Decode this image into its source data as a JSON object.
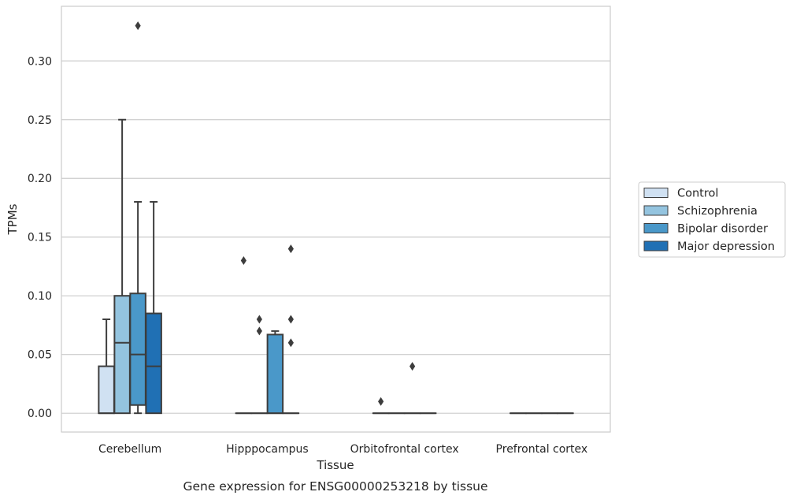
{
  "chart_data": {
    "type": "box",
    "title": "Gene expression for ENSG00000253218 by tissue",
    "xlabel": "Tissue",
    "ylabel": "TPMs",
    "ylim": [
      -0.016,
      0.3465
    ],
    "yticks": [
      0.0,
      0.05,
      0.1,
      0.15,
      0.2,
      0.25,
      0.3
    ],
    "ytick_labels": [
      "0.00",
      "0.05",
      "0.10",
      "0.15",
      "0.20",
      "0.25",
      "0.30"
    ],
    "grid": "horizontal",
    "legend_placement": "right",
    "categories": [
      "Cerebellum",
      "Hipppocampus",
      "Orbitofrontal cortex",
      "Prefrontal cortex"
    ],
    "series": [
      {
        "name": "Control",
        "color": "#d0e1f2",
        "boxes": [
          {
            "q1": 0.0,
            "median": 0.0,
            "q3": 0.04,
            "whislo": 0.0,
            "whishi": 0.08,
            "fliers": []
          },
          {
            "q1": 0.0,
            "median": 0.0,
            "q3": 0.0,
            "whislo": 0.0,
            "whishi": 0.0,
            "fliers": [
              0.13
            ]
          },
          {
            "q1": 0.0,
            "median": 0.0,
            "q3": 0.0,
            "whislo": 0.0,
            "whishi": 0.0,
            "fliers": [
              0.01
            ]
          },
          {
            "q1": 0.0,
            "median": 0.0,
            "q3": 0.0,
            "whislo": 0.0,
            "whishi": 0.0,
            "fliers": []
          }
        ]
      },
      {
        "name": "Schizophrenia",
        "color": "#94c4df",
        "boxes": [
          {
            "q1": 0.0,
            "median": 0.06,
            "q3": 0.1,
            "whislo": 0.0,
            "whishi": 0.25,
            "fliers": []
          },
          {
            "q1": 0.0,
            "median": 0.0,
            "q3": 0.0,
            "whislo": 0.0,
            "whishi": 0.0,
            "fliers": [
              0.08,
              0.07
            ]
          },
          {
            "q1": 0.0,
            "median": 0.0,
            "q3": 0.0,
            "whislo": 0.0,
            "whishi": 0.0,
            "fliers": []
          },
          {
            "q1": 0.0,
            "median": 0.0,
            "q3": 0.0,
            "whislo": 0.0,
            "whishi": 0.0,
            "fliers": []
          }
        ]
      },
      {
        "name": "Bipolar disorder",
        "color": "#4a98c9",
        "boxes": [
          {
            "q1": 0.007,
            "median": 0.05,
            "q3": 0.102,
            "whislo": 0.0,
            "whishi": 0.18,
            "fliers": [
              0.33
            ]
          },
          {
            "q1": 0.0,
            "median": 0.0,
            "q3": 0.067,
            "whislo": 0.0,
            "whishi": 0.07,
            "fliers": []
          },
          {
            "q1": 0.0,
            "median": 0.0,
            "q3": 0.0,
            "whislo": 0.0,
            "whishi": 0.0,
            "fliers": [
              0.04
            ]
          },
          {
            "q1": 0.0,
            "median": 0.0,
            "q3": 0.0,
            "whislo": 0.0,
            "whishi": 0.0,
            "fliers": []
          }
        ]
      },
      {
        "name": "Major depression",
        "color": "#2070b4",
        "boxes": [
          {
            "q1": 0.0,
            "median": 0.04,
            "q3": 0.085,
            "whislo": 0.0,
            "whishi": 0.18,
            "fliers": []
          },
          {
            "q1": 0.0,
            "median": 0.0,
            "q3": 0.0,
            "whislo": 0.0,
            "whishi": 0.0,
            "fliers": [
              0.14,
              0.08,
              0.06
            ]
          },
          {
            "q1": 0.0,
            "median": 0.0,
            "q3": 0.0,
            "whislo": 0.0,
            "whishi": 0.0,
            "fliers": []
          },
          {
            "q1": 0.0,
            "median": 0.0,
            "q3": 0.0,
            "whislo": 0.0,
            "whishi": 0.0,
            "fliers": []
          }
        ]
      }
    ]
  }
}
